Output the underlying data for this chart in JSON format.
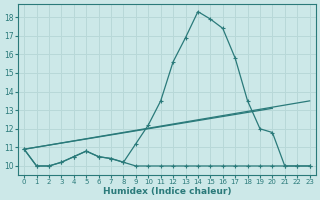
{
  "xlabel": "Humidex (Indice chaleur)",
  "xlim_min": -0.5,
  "xlim_max": 23.5,
  "ylim_min": 9.5,
  "ylim_max": 18.7,
  "background_color": "#cce8e8",
  "grid_color": "#b8d8d8",
  "line_color": "#2a7a7a",
  "xticks": [
    0,
    1,
    2,
    3,
    4,
    5,
    6,
    7,
    8,
    9,
    10,
    11,
    12,
    13,
    14,
    15,
    16,
    17,
    18,
    19,
    20,
    21,
    22,
    23
  ],
  "yticks": [
    10,
    11,
    12,
    13,
    14,
    15,
    16,
    17,
    18
  ],
  "curve1_x": [
    0,
    1,
    2,
    3,
    4,
    5,
    6,
    7,
    8,
    9,
    10,
    11,
    12,
    13,
    14,
    15,
    16,
    17,
    18,
    19,
    20,
    21,
    22,
    23
  ],
  "curve1_y": [
    10.9,
    10.0,
    10.0,
    10.2,
    10.5,
    10.8,
    10.5,
    10.4,
    10.2,
    11.2,
    12.2,
    13.5,
    15.6,
    16.9,
    18.3,
    17.9,
    17.4,
    15.8,
    13.5,
    12.0,
    11.8,
    10.0,
    10.0,
    10.0
  ],
  "curve2_x": [
    0,
    1,
    2,
    3,
    4,
    5,
    6,
    7,
    8,
    9,
    10,
    11,
    12,
    13,
    14,
    15,
    16,
    17,
    18,
    19,
    20,
    21,
    22,
    23
  ],
  "curve2_y": [
    10.9,
    10.0,
    10.0,
    10.2,
    10.5,
    10.8,
    10.5,
    10.4,
    10.2,
    10.0,
    10.0,
    10.0,
    10.0,
    10.0,
    10.0,
    10.0,
    10.0,
    10.0,
    10.0,
    10.0,
    10.0,
    10.0,
    10.0,
    10.0
  ],
  "line3_x": [
    0,
    20
  ],
  "line3_y": [
    10.9,
    13.1
  ],
  "line4_x": [
    0,
    20
  ],
  "line4_y": [
    10.9,
    13.1
  ]
}
